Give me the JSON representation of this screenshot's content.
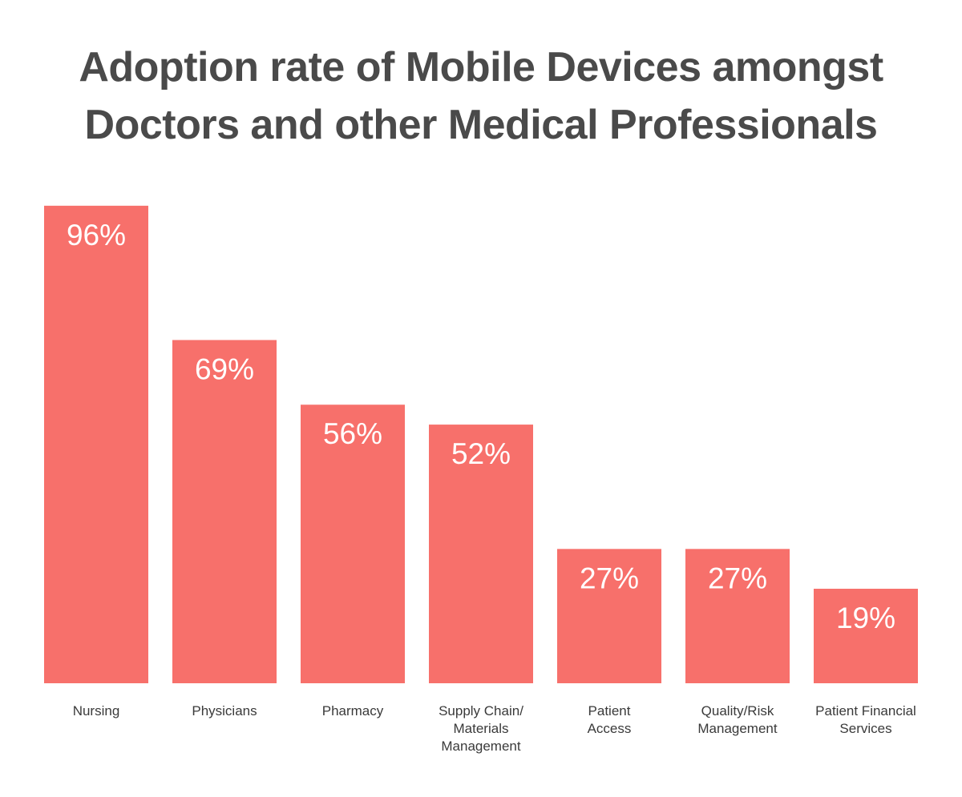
{
  "chart_data": {
    "type": "bar",
    "title_lines": [
      "Adoption rate of Mobile Devices amongst",
      "Doctors and other Medical Professionals"
    ],
    "categories": [
      [
        "Nursing"
      ],
      [
        "Physicians"
      ],
      [
        "Pharmacy"
      ],
      [
        "Supply Chain/",
        "Materials",
        "Management"
      ],
      [
        "Patient",
        "Access"
      ],
      [
        "Quality/Risk",
        "Management"
      ],
      [
        "Patient Financial",
        "Services"
      ]
    ],
    "values": [
      96,
      69,
      56,
      52,
      27,
      27,
      19
    ],
    "value_labels": [
      "96%",
      "69%",
      "56%",
      "52%",
      "27%",
      "27%",
      "19%"
    ],
    "xlabel": "",
    "ylabel": "",
    "ylim": [
      0,
      100
    ],
    "grid": false,
    "bar_color": "#f7706b"
  }
}
